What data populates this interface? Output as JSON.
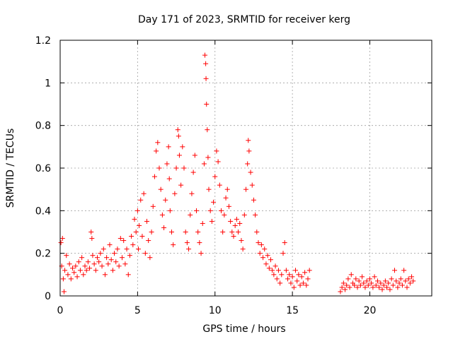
{
  "chart_data": {
    "type": "scatter",
    "title": "Day 171 of 2023, SRMTID for receiver kerg",
    "xlabel": "GPS time / hours",
    "ylabel": "SRMTID / TECUs",
    "xlim": [
      0,
      24
    ],
    "ylim": [
      0,
      1.2
    ],
    "x_ticks": [
      0,
      5,
      10,
      15,
      20
    ],
    "x_tick_labels": [
      "0",
      "5",
      "10",
      "15",
      "20"
    ],
    "y_ticks": [
      0,
      0.2,
      0.4,
      0.6,
      0.8,
      1.0,
      1.2
    ],
    "y_tick_labels": [
      "0",
      "0.2",
      "0.4",
      "0.6",
      "0.8",
      "1",
      "1.2"
    ],
    "grid": true,
    "marker": "+",
    "marker_color": "#ff0000",
    "series": [
      {
        "name": "kerg",
        "points": [
          [
            0.05,
            0.25
          ],
          [
            0.1,
            0.14
          ],
          [
            0.15,
            0.27
          ],
          [
            0.2,
            0.08
          ],
          [
            0.25,
            0.02
          ],
          [
            0.3,
            0.12
          ],
          [
            0.4,
            0.19
          ],
          [
            0.5,
            0.1
          ],
          [
            0.6,
            0.15
          ],
          [
            0.7,
            0.08
          ],
          [
            0.8,
            0.13
          ],
          [
            0.9,
            0.11
          ],
          [
            1.0,
            0.14
          ],
          [
            1.1,
            0.09
          ],
          [
            1.2,
            0.16
          ],
          [
            1.3,
            0.12
          ],
          [
            1.4,
            0.18
          ],
          [
            1.5,
            0.1
          ],
          [
            1.6,
            0.14
          ],
          [
            1.7,
            0.12
          ],
          [
            1.8,
            0.16
          ],
          [
            1.9,
            0.13
          ],
          [
            2.0,
            0.3
          ],
          [
            2.05,
            0.27
          ],
          [
            2.1,
            0.19
          ],
          [
            2.2,
            0.15
          ],
          [
            2.3,
            0.12
          ],
          [
            2.4,
            0.18
          ],
          [
            2.5,
            0.16
          ],
          [
            2.6,
            0.2
          ],
          [
            2.7,
            0.14
          ],
          [
            2.8,
            0.22
          ],
          [
            2.9,
            0.1
          ],
          [
            3.0,
            0.18
          ],
          [
            3.1,
            0.15
          ],
          [
            3.2,
            0.24
          ],
          [
            3.3,
            0.17
          ],
          [
            3.4,
            0.12
          ],
          [
            3.5,
            0.2
          ],
          [
            3.6,
            0.16
          ],
          [
            3.7,
            0.22
          ],
          [
            3.8,
            0.14
          ],
          [
            3.9,
            0.27
          ],
          [
            4.0,
            0.18
          ],
          [
            4.1,
            0.26
          ],
          [
            4.2,
            0.15
          ],
          [
            4.3,
            0.22
          ],
          [
            4.4,
            0.1
          ],
          [
            4.5,
            0.19
          ],
          [
            4.6,
            0.28
          ],
          [
            4.7,
            0.24
          ],
          [
            4.8,
            0.36
          ],
          [
            4.9,
            0.3
          ],
          [
            5.0,
            0.4
          ],
          [
            5.05,
            0.22
          ],
          [
            5.1,
            0.33
          ],
          [
            5.2,
            0.45
          ],
          [
            5.3,
            0.28
          ],
          [
            5.4,
            0.48
          ],
          [
            5.5,
            0.2
          ],
          [
            5.6,
            0.35
          ],
          [
            5.7,
            0.26
          ],
          [
            5.8,
            0.18
          ],
          [
            5.9,
            0.3
          ],
          [
            6.0,
            0.42
          ],
          [
            6.1,
            0.56
          ],
          [
            6.2,
            0.68
          ],
          [
            6.3,
            0.72
          ],
          [
            6.4,
            0.6
          ],
          [
            6.5,
            0.5
          ],
          [
            6.6,
            0.38
          ],
          [
            6.7,
            0.32
          ],
          [
            6.8,
            0.45
          ],
          [
            6.9,
            0.62
          ],
          [
            7.0,
            0.7
          ],
          [
            7.05,
            0.55
          ],
          [
            7.1,
            0.4
          ],
          [
            7.2,
            0.3
          ],
          [
            7.3,
            0.24
          ],
          [
            7.4,
            0.48
          ],
          [
            7.5,
            0.6
          ],
          [
            7.6,
            0.78
          ],
          [
            7.65,
            0.75
          ],
          [
            7.7,
            0.66
          ],
          [
            7.8,
            0.52
          ],
          [
            7.9,
            0.7
          ],
          [
            8.0,
            0.6
          ],
          [
            8.1,
            0.3
          ],
          [
            8.2,
            0.25
          ],
          [
            8.3,
            0.22
          ],
          [
            8.4,
            0.38
          ],
          [
            8.5,
            0.48
          ],
          [
            8.6,
            0.58
          ],
          [
            8.7,
            0.66
          ],
          [
            8.8,
            0.4
          ],
          [
            8.9,
            0.3
          ],
          [
            9.0,
            0.25
          ],
          [
            9.1,
            0.2
          ],
          [
            9.2,
            0.34
          ],
          [
            9.3,
            0.62
          ],
          [
            9.35,
            1.13
          ],
          [
            9.4,
            1.09
          ],
          [
            9.42,
            1.02
          ],
          [
            9.45,
            0.9
          ],
          [
            9.5,
            0.78
          ],
          [
            9.55,
            0.65
          ],
          [
            9.6,
            0.5
          ],
          [
            9.7,
            0.4
          ],
          [
            9.8,
            0.35
          ],
          [
            9.9,
            0.44
          ],
          [
            10.0,
            0.56
          ],
          [
            10.1,
            0.68
          ],
          [
            10.2,
            0.63
          ],
          [
            10.3,
            0.52
          ],
          [
            10.4,
            0.4
          ],
          [
            10.5,
            0.3
          ],
          [
            10.6,
            0.38
          ],
          [
            10.7,
            0.46
          ],
          [
            10.8,
            0.5
          ],
          [
            10.9,
            0.42
          ],
          [
            11.0,
            0.35
          ],
          [
            11.1,
            0.3
          ],
          [
            11.2,
            0.28
          ],
          [
            11.3,
            0.33
          ],
          [
            11.4,
            0.36
          ],
          [
            11.5,
            0.3
          ],
          [
            11.6,
            0.34
          ],
          [
            11.7,
            0.26
          ],
          [
            11.8,
            0.22
          ],
          [
            11.9,
            0.38
          ],
          [
            12.0,
            0.5
          ],
          [
            12.1,
            0.62
          ],
          [
            12.15,
            0.73
          ],
          [
            12.2,
            0.68
          ],
          [
            12.3,
            0.58
          ],
          [
            12.4,
            0.52
          ],
          [
            12.5,
            0.45
          ],
          [
            12.6,
            0.38
          ],
          [
            12.7,
            0.3
          ],
          [
            12.8,
            0.25
          ],
          [
            12.9,
            0.2
          ],
          [
            13.0,
            0.24
          ],
          [
            13.1,
            0.18
          ],
          [
            13.2,
            0.22
          ],
          [
            13.3,
            0.15
          ],
          [
            13.4,
            0.19
          ],
          [
            13.5,
            0.13
          ],
          [
            13.6,
            0.17
          ],
          [
            13.7,
            0.12
          ],
          [
            13.8,
            0.1
          ],
          [
            13.9,
            0.14
          ],
          [
            14.0,
            0.08
          ],
          [
            14.1,
            0.12
          ],
          [
            14.2,
            0.06
          ],
          [
            14.3,
            0.1
          ],
          [
            14.4,
            0.2
          ],
          [
            14.5,
            0.25
          ],
          [
            14.6,
            0.12
          ],
          [
            14.7,
            0.08
          ],
          [
            14.8,
            0.1
          ],
          [
            14.9,
            0.06
          ],
          [
            15.0,
            0.09
          ],
          [
            15.1,
            0.04
          ],
          [
            15.2,
            0.12
          ],
          [
            15.3,
            0.07
          ],
          [
            15.4,
            0.1
          ],
          [
            15.5,
            0.05
          ],
          [
            15.6,
            0.09
          ],
          [
            15.7,
            0.06
          ],
          [
            15.8,
            0.11
          ],
          [
            15.9,
            0.05
          ],
          [
            16.0,
            0.08
          ],
          [
            16.1,
            0.12
          ],
          [
            18.1,
            0.02
          ],
          [
            18.2,
            0.04
          ],
          [
            18.3,
            0.06
          ],
          [
            18.4,
            0.03
          ],
          [
            18.5,
            0.05
          ],
          [
            18.6,
            0.08
          ],
          [
            18.7,
            0.04
          ],
          [
            18.8,
            0.1
          ],
          [
            18.9,
            0.06
          ],
          [
            19.0,
            0.05
          ],
          [
            19.1,
            0.08
          ],
          [
            19.2,
            0.04
          ],
          [
            19.3,
            0.07
          ],
          [
            19.4,
            0.05
          ],
          [
            19.5,
            0.09
          ],
          [
            19.6,
            0.06
          ],
          [
            19.7,
            0.04
          ],
          [
            19.8,
            0.07
          ],
          [
            19.9,
            0.05
          ],
          [
            20.0,
            0.08
          ],
          [
            20.1,
            0.06
          ],
          [
            20.2,
            0.04
          ],
          [
            20.3,
            0.09
          ],
          [
            20.4,
            0.05
          ],
          [
            20.5,
            0.07
          ],
          [
            20.6,
            0.04
          ],
          [
            20.7,
            0.06
          ],
          [
            20.8,
            0.03
          ],
          [
            20.9,
            0.05
          ],
          [
            21.0,
            0.07
          ],
          [
            21.1,
            0.04
          ],
          [
            21.2,
            0.06
          ],
          [
            21.3,
            0.03
          ],
          [
            21.4,
            0.08
          ],
          [
            21.5,
            0.05
          ],
          [
            21.6,
            0.12
          ],
          [
            21.7,
            0.07
          ],
          [
            21.8,
            0.04
          ],
          [
            21.9,
            0.06
          ],
          [
            22.0,
            0.08
          ],
          [
            22.1,
            0.05
          ],
          [
            22.2,
            0.12
          ],
          [
            22.3,
            0.07
          ],
          [
            22.4,
            0.04
          ],
          [
            22.5,
            0.08
          ],
          [
            22.6,
            0.06
          ],
          [
            22.7,
            0.09
          ],
          [
            22.8,
            0.07
          ]
        ]
      }
    ]
  }
}
